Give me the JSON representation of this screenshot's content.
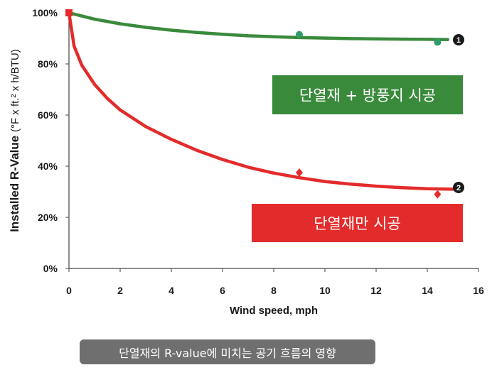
{
  "chart_data": {
    "type": "line",
    "xlabel": "Wind speed, mph",
    "ylabel": "Installed R-Value",
    "ylabel_units": "(°F x ft.² x h/BTU)",
    "xlim": [
      0,
      16
    ],
    "ylim": [
      0,
      100
    ],
    "x_ticks": [
      0,
      2,
      4,
      6,
      8,
      10,
      12,
      14,
      16
    ],
    "y_ticks": [
      0,
      20,
      40,
      60,
      80,
      100
    ],
    "y_tick_labels": [
      "0%",
      "20%",
      "40%",
      "60%",
      "80%",
      "100%"
    ],
    "grid": false,
    "series": [
      {
        "name": "단열재 + 방풍지 시공",
        "marker_label": "1",
        "color": "#3a8a3c",
        "points": [
          [
            0,
            100
          ],
          [
            9,
            91.5
          ],
          [
            14.4,
            88.5
          ]
        ],
        "curve": [
          [
            0,
            100
          ],
          [
            1,
            97.5
          ],
          [
            2,
            95.7
          ],
          [
            3,
            94.3
          ],
          [
            4,
            93.2
          ],
          [
            5,
            92.3
          ],
          [
            6,
            91.6
          ],
          [
            7,
            91.0
          ],
          [
            8,
            90.6
          ],
          [
            9,
            90.3
          ],
          [
            10,
            90.1
          ],
          [
            11,
            89.9
          ],
          [
            12,
            89.8
          ],
          [
            13,
            89.7
          ],
          [
            14,
            89.6
          ],
          [
            14.8,
            89.5
          ]
        ]
      },
      {
        "name": "단열재만 시공",
        "marker_label": "2",
        "color": "#e42b2b",
        "points": [
          [
            0,
            100
          ],
          [
            9,
            37.5
          ],
          [
            14.4,
            29
          ]
        ],
        "curve": [
          [
            0,
            100
          ],
          [
            0.2,
            87
          ],
          [
            0.5,
            79.5
          ],
          [
            1,
            72
          ],
          [
            1.5,
            66.5
          ],
          [
            2,
            62
          ],
          [
            3,
            55.5
          ],
          [
            4,
            50.5
          ],
          [
            5,
            46.2
          ],
          [
            6,
            42.6
          ],
          [
            7,
            39.6
          ],
          [
            8,
            37.3
          ],
          [
            9,
            35.5
          ],
          [
            10,
            34.0
          ],
          [
            11,
            33.0
          ],
          [
            12,
            32.2
          ],
          [
            13,
            31.6
          ],
          [
            14,
            31.2
          ],
          [
            15,
            31.0
          ]
        ]
      }
    ]
  },
  "caption": "단열재의 R-value에 미치는 공기 흐름의 영향"
}
